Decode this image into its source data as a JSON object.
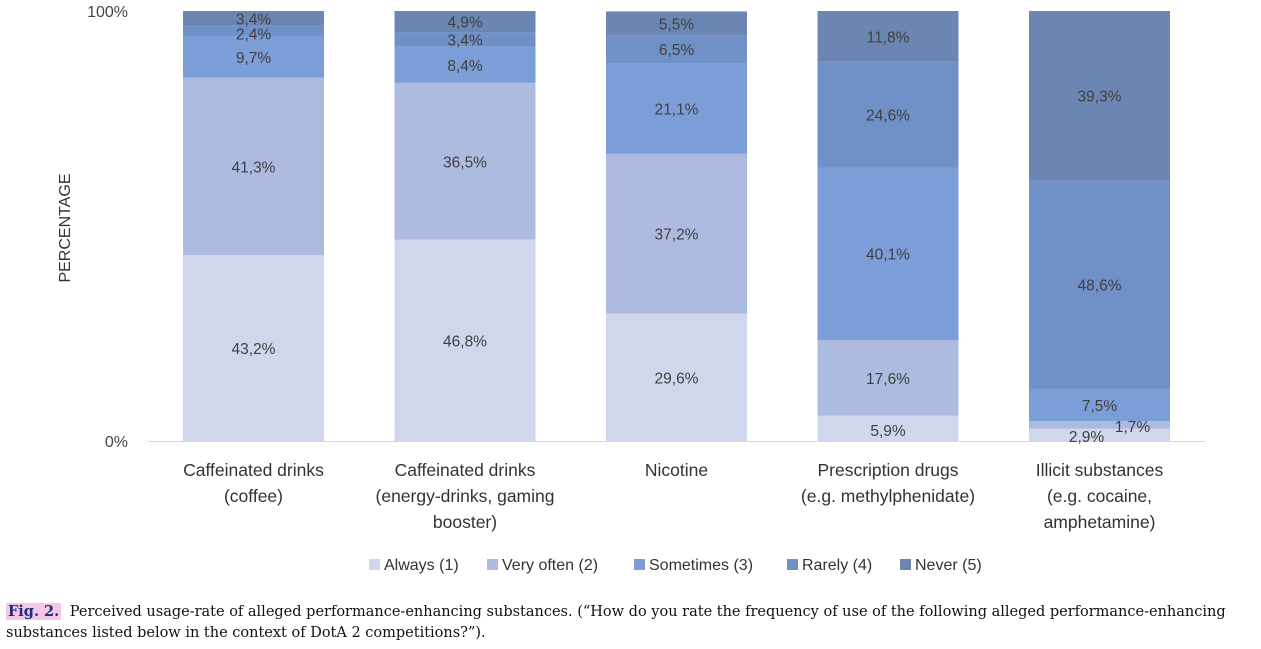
{
  "chart_data": {
    "type": "bar",
    "stacked": true,
    "orientation": "vertical",
    "categories": [
      [
        "Caffeinated drinks",
        "(coffee)"
      ],
      [
        "Caffeinated drinks",
        "(energy-drinks, gaming",
        "booster)"
      ],
      [
        "Nicotine"
      ],
      [
        "Prescription drugs",
        "(e.g. methylphenidate)"
      ],
      [
        "Illicit substances",
        "(e.g. cocaine,",
        "amphetamine)"
      ]
    ],
    "series": [
      {
        "name": "Always (1)",
        "color": "#d0d6ec",
        "values": [
          43.2,
          46.8,
          29.6,
          5.9,
          2.9
        ],
        "labels": [
          "43,2%",
          "46,8%",
          "29,6%",
          "5,9%",
          "2,9%"
        ]
      },
      {
        "name": "Very often (2)",
        "color": "#aebbe0",
        "values": [
          41.3,
          36.5,
          37.2,
          17.6,
          1.7
        ],
        "labels": [
          "41,3%",
          "36,5%",
          "37,2%",
          "17,6%",
          "1,7%"
        ]
      },
      {
        "name": "Sometimes (3)",
        "color": "#7b9ed8",
        "values": [
          9.7,
          8.4,
          21.1,
          40.1,
          7.5
        ],
        "labels": [
          "9,7%",
          "8,4%",
          "21,1%",
          "40,1%",
          "7,5%"
        ]
      },
      {
        "name": "Rarely (4)",
        "color": "#7091c8",
        "values": [
          2.4,
          3.4,
          6.5,
          24.6,
          48.6
        ],
        "labels": [
          "2,4%",
          "3,4%",
          "6,5%",
          "24,6%",
          "48,6%"
        ]
      },
      {
        "name": "Never (5)",
        "color": "#6c86b3",
        "values": [
          3.4,
          4.9,
          5.5,
          11.8,
          39.3
        ],
        "labels": [
          "3,4%",
          "4,9%",
          "5,5%",
          "11,8%",
          "39,3%"
        ]
      }
    ],
    "title": "",
    "xlabel": "",
    "ylabel": "PERCENTAGE",
    "yticks": [
      "0%",
      "100%"
    ],
    "ylim": [
      0,
      100
    ],
    "grid": false,
    "legend": "bottom"
  },
  "caption": {
    "label": "Fig. 2.",
    "text": "Perceived usage-rate of alleged performance-enhancing substances. (“How do you rate the frequency of use of the following alleged performance-enhancing substances listed below in the context of DotA 2 competitions?”)."
  }
}
